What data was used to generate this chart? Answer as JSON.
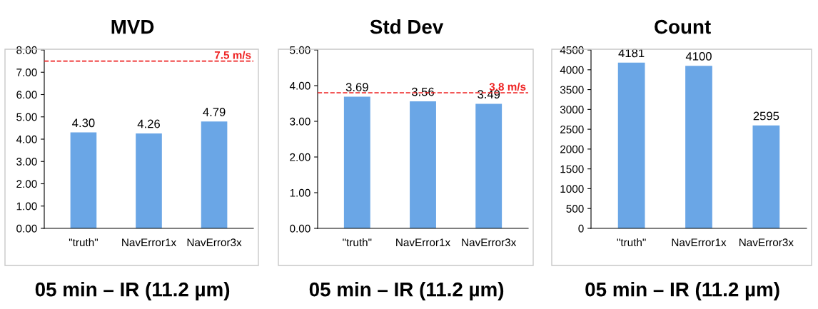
{
  "chart_data": [
    {
      "type": "bar",
      "title": "MVD",
      "xlabel": "05 min – IR (11.2 µm)",
      "categories": [
        "\"truth\"",
        "NavError1x",
        "NavError3x"
      ],
      "values": [
        4.3,
        4.26,
        4.79
      ],
      "value_labels": [
        "4.30",
        "4.26",
        "4.79"
      ],
      "color": "#6aa6e6",
      "ylim": [
        0,
        8
      ],
      "yticks": [
        {
          "value": 0,
          "label": "0.00"
        },
        {
          "value": 1,
          "label": "1.00"
        },
        {
          "value": 2,
          "label": "2.00"
        },
        {
          "value": 3,
          "label": "3.00"
        },
        {
          "value": 4,
          "label": "4.00"
        },
        {
          "value": 5,
          "label": "5.00"
        },
        {
          "value": 6,
          "label": "6.00"
        },
        {
          "value": 7,
          "label": "7.00"
        },
        {
          "value": 8,
          "label": "8.00"
        }
      ],
      "ref_lines": [
        {
          "axis": "y",
          "value": 7.5,
          "label": "7.5 m/s",
          "color": "#ee2222",
          "line_style": "dashed"
        }
      ]
    },
    {
      "type": "bar",
      "title": "Std Dev",
      "xlabel": "05 min – IR (11.2 µm)",
      "categories": [
        "\"truth\"",
        "NavError1x",
        "NavError3x"
      ],
      "values": [
        3.69,
        3.56,
        3.49
      ],
      "value_labels": [
        "3.69",
        "3.56",
        "3.49"
      ],
      "color": "#6aa6e6",
      "ylim": [
        0,
        5
      ],
      "yticks": [
        {
          "value": 0,
          "label": "0.00"
        },
        {
          "value": 1,
          "label": "1.00"
        },
        {
          "value": 2,
          "label": "2.00"
        },
        {
          "value": 3,
          "label": "3.00"
        },
        {
          "value": 4,
          "label": "4.00"
        },
        {
          "value": 5,
          "label": "5.00"
        }
      ],
      "ref_lines": [
        {
          "axis": "y",
          "value": 3.8,
          "label": "3.8 m/s",
          "color": "#ee2222",
          "line_style": "dashed"
        }
      ]
    },
    {
      "type": "bar",
      "title": "Count",
      "xlabel": "05 min – IR (11.2 µm)",
      "categories": [
        "\"truth\"",
        "NavError1x",
        "NavError3x"
      ],
      "values": [
        4181,
        4100,
        2595
      ],
      "data_labels": true,
      "color": "#6aa6e6",
      "ylim": [
        0,
        4500
      ],
      "yticks": [
        0,
        500,
        1000,
        1500,
        2000,
        2500,
        3000,
        3500,
        4000,
        4500
      ]
    }
  ]
}
